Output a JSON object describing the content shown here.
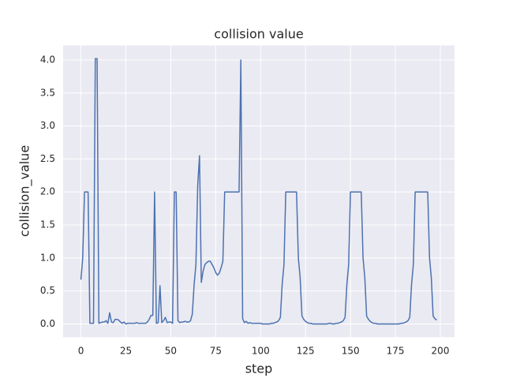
{
  "chart_data": {
    "type": "line",
    "title": "collision value",
    "x_label": "step",
    "y_label": "collision_value",
    "x": [
      0,
      1,
      2,
      3,
      4,
      5,
      6,
      7,
      8,
      9,
      10,
      11,
      12,
      13,
      14,
      15,
      16,
      17,
      18,
      19,
      20,
      21,
      22,
      23,
      24,
      25,
      26,
      27,
      28,
      29,
      30,
      31,
      32,
      33,
      34,
      35,
      36,
      37,
      38,
      39,
      40,
      41,
      42,
      43,
      44,
      45,
      46,
      47,
      48,
      49,
      50,
      51,
      52,
      53,
      54,
      55,
      56,
      57,
      58,
      59,
      60,
      61,
      62,
      63,
      64,
      65,
      66,
      67,
      68,
      69,
      70,
      71,
      72,
      73,
      74,
      75,
      76,
      77,
      78,
      79,
      80,
      81,
      82,
      83,
      84,
      85,
      86,
      87,
      88,
      89,
      90,
      91,
      92,
      93,
      94,
      95,
      96,
      97,
      98,
      99,
      100,
      101,
      102,
      103,
      104,
      105,
      106,
      107,
      108,
      109,
      110,
      111,
      112,
      113,
      114,
      115,
      116,
      117,
      118,
      119,
      120,
      121,
      122,
      123,
      124,
      125,
      126,
      127,
      128,
      129,
      130,
      131,
      132,
      133,
      134,
      135,
      136,
      137,
      138,
      139,
      140,
      141,
      142,
      143,
      144,
      145,
      146,
      147,
      148,
      149,
      150,
      151,
      152,
      153,
      154,
      155,
      156,
      157,
      158,
      159,
      160,
      161,
      162,
      163,
      164,
      165,
      166,
      167,
      168,
      169,
      170,
      171,
      172,
      173,
      174,
      175,
      176,
      177,
      178,
      179,
      180,
      181,
      182,
      183,
      184,
      185,
      186,
      187,
      188,
      189,
      190,
      191,
      192,
      193,
      194,
      195,
      196,
      197,
      198
    ],
    "series": [
      {
        "name": "collision_value",
        "color": "#4c72b0",
        "values": [
          0.67,
          1.0,
          2.0,
          2.0,
          2.0,
          0.01,
          0.01,
          0.01,
          4.02,
          4.02,
          0.01,
          0.02,
          0.03,
          0.03,
          0.05,
          0.01,
          0.17,
          0.03,
          0.02,
          0.07,
          0.07,
          0.06,
          0.03,
          0.01,
          0.03,
          0.0,
          0.01,
          0.01,
          0.01,
          0.01,
          0.01,
          0.02,
          0.01,
          0.01,
          0.01,
          0.01,
          0.01,
          0.03,
          0.07,
          0.13,
          0.13,
          2.0,
          0.01,
          0.02,
          0.58,
          0.02,
          0.05,
          0.1,
          0.02,
          0.03,
          0.03,
          0.01,
          2.0,
          2.0,
          0.05,
          0.02,
          0.03,
          0.03,
          0.04,
          0.03,
          0.03,
          0.05,
          0.15,
          0.6,
          0.9,
          2.1,
          2.55,
          0.63,
          0.8,
          0.9,
          0.93,
          0.95,
          0.95,
          0.9,
          0.85,
          0.78,
          0.74,
          0.77,
          0.85,
          0.95,
          2.0,
          2.0,
          2.0,
          2.0,
          2.0,
          2.0,
          2.0,
          2.0,
          2.0,
          4.0,
          0.08,
          0.02,
          0.04,
          0.01,
          0.02,
          0.01,
          0.01,
          0.01,
          0.01,
          0.01,
          0.01,
          0.0,
          0.0,
          0.0,
          0.0,
          0.0,
          0.01,
          0.01,
          0.02,
          0.03,
          0.05,
          0.1,
          0.6,
          0.9,
          2.0,
          2.0,
          2.0,
          2.0,
          2.0,
          2.0,
          2.0,
          1.0,
          0.7,
          0.12,
          0.07,
          0.04,
          0.02,
          0.01,
          0.01,
          0.0,
          0.0,
          0.0,
          0.0,
          0.0,
          0.0,
          0.0,
          0.0,
          0.0,
          0.01,
          0.01,
          0.0,
          0.0,
          0.01,
          0.01,
          0.02,
          0.03,
          0.05,
          0.1,
          0.6,
          0.9,
          2.0,
          2.0,
          2.0,
          2.0,
          2.0,
          2.0,
          2.0,
          1.0,
          0.7,
          0.12,
          0.07,
          0.04,
          0.02,
          0.01,
          0.01,
          0.0,
          0.0,
          0.0,
          0.0,
          0.0,
          0.0,
          0.0,
          0.0,
          0.0,
          0.0,
          0.0,
          0.0,
          0.0,
          0.01,
          0.01,
          0.02,
          0.03,
          0.05,
          0.1,
          0.6,
          0.9,
          2.0,
          2.0,
          2.0,
          2.0,
          2.0,
          2.0,
          2.0,
          2.0,
          1.0,
          0.7,
          0.12,
          0.08,
          0.06
        ]
      }
    ],
    "xlim": [
      -9.9,
      207.9
    ],
    "ylim": [
      -0.2,
      4.22
    ],
    "xticks": [
      0,
      25,
      50,
      75,
      100,
      125,
      150,
      175,
      200
    ],
    "yticks": [
      {
        "value": 0,
        "label": "0.0"
      },
      {
        "value": 0.5,
        "label": "0.5"
      },
      {
        "value": 1,
        "label": "1.0"
      },
      {
        "value": 1.5,
        "label": "1.5"
      },
      {
        "value": 2,
        "label": "2.0"
      },
      {
        "value": 2.5,
        "label": "2.5"
      },
      {
        "value": 3,
        "label": "3.0"
      },
      {
        "value": 3.5,
        "label": "3.5"
      },
      {
        "value": 4,
        "label": "4.0"
      }
    ],
    "grid": true
  }
}
